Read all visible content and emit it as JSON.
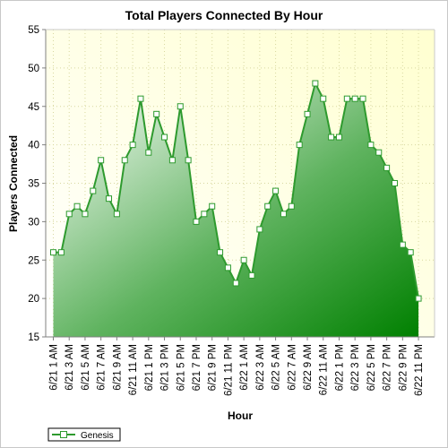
{
  "chart_data": {
    "type": "area",
    "title": "Total Players Connected By Hour",
    "xlabel": "Hour",
    "ylabel": "Players Connected",
    "ylim": [
      15,
      55
    ],
    "yticks": [
      15,
      20,
      25,
      30,
      35,
      40,
      45,
      50,
      55
    ],
    "grid": true,
    "legend": "bottom-left",
    "x_tick_labels": [
      "6/21 1 AM",
      "6/21 3 AM",
      "6/21 5 AM",
      "6/21 7 AM",
      "6/21 9 AM",
      "6/21 11 AM",
      "6/21 1 PM",
      "6/21 3 PM",
      "6/21 5 PM",
      "6/21 7 PM",
      "6/21 9 PM",
      "6/21 11 PM",
      "6/22 1 AM",
      "6/22 3 AM",
      "6/22 5 AM",
      "6/22 7 AM",
      "6/22 9 AM",
      "6/22 11 AM",
      "6/22 1 PM",
      "6/22 3 PM",
      "6/22 5 PM",
      "6/22 7 PM",
      "6/22 9 PM",
      "6/22 11 PM"
    ],
    "series": [
      {
        "name": "Genesis",
        "color": "#2e9a2e",
        "values": [
          26,
          26,
          31,
          32,
          31,
          34,
          38,
          33,
          31,
          38,
          40,
          46,
          39,
          44,
          41,
          38,
          45,
          38,
          30,
          31,
          32,
          26,
          24,
          22,
          25,
          23,
          29,
          32,
          34,
          31,
          32,
          40,
          44,
          48,
          46,
          41,
          41,
          46,
          46,
          46,
          40,
          39,
          37,
          35,
          27,
          26,
          20
        ]
      }
    ]
  }
}
